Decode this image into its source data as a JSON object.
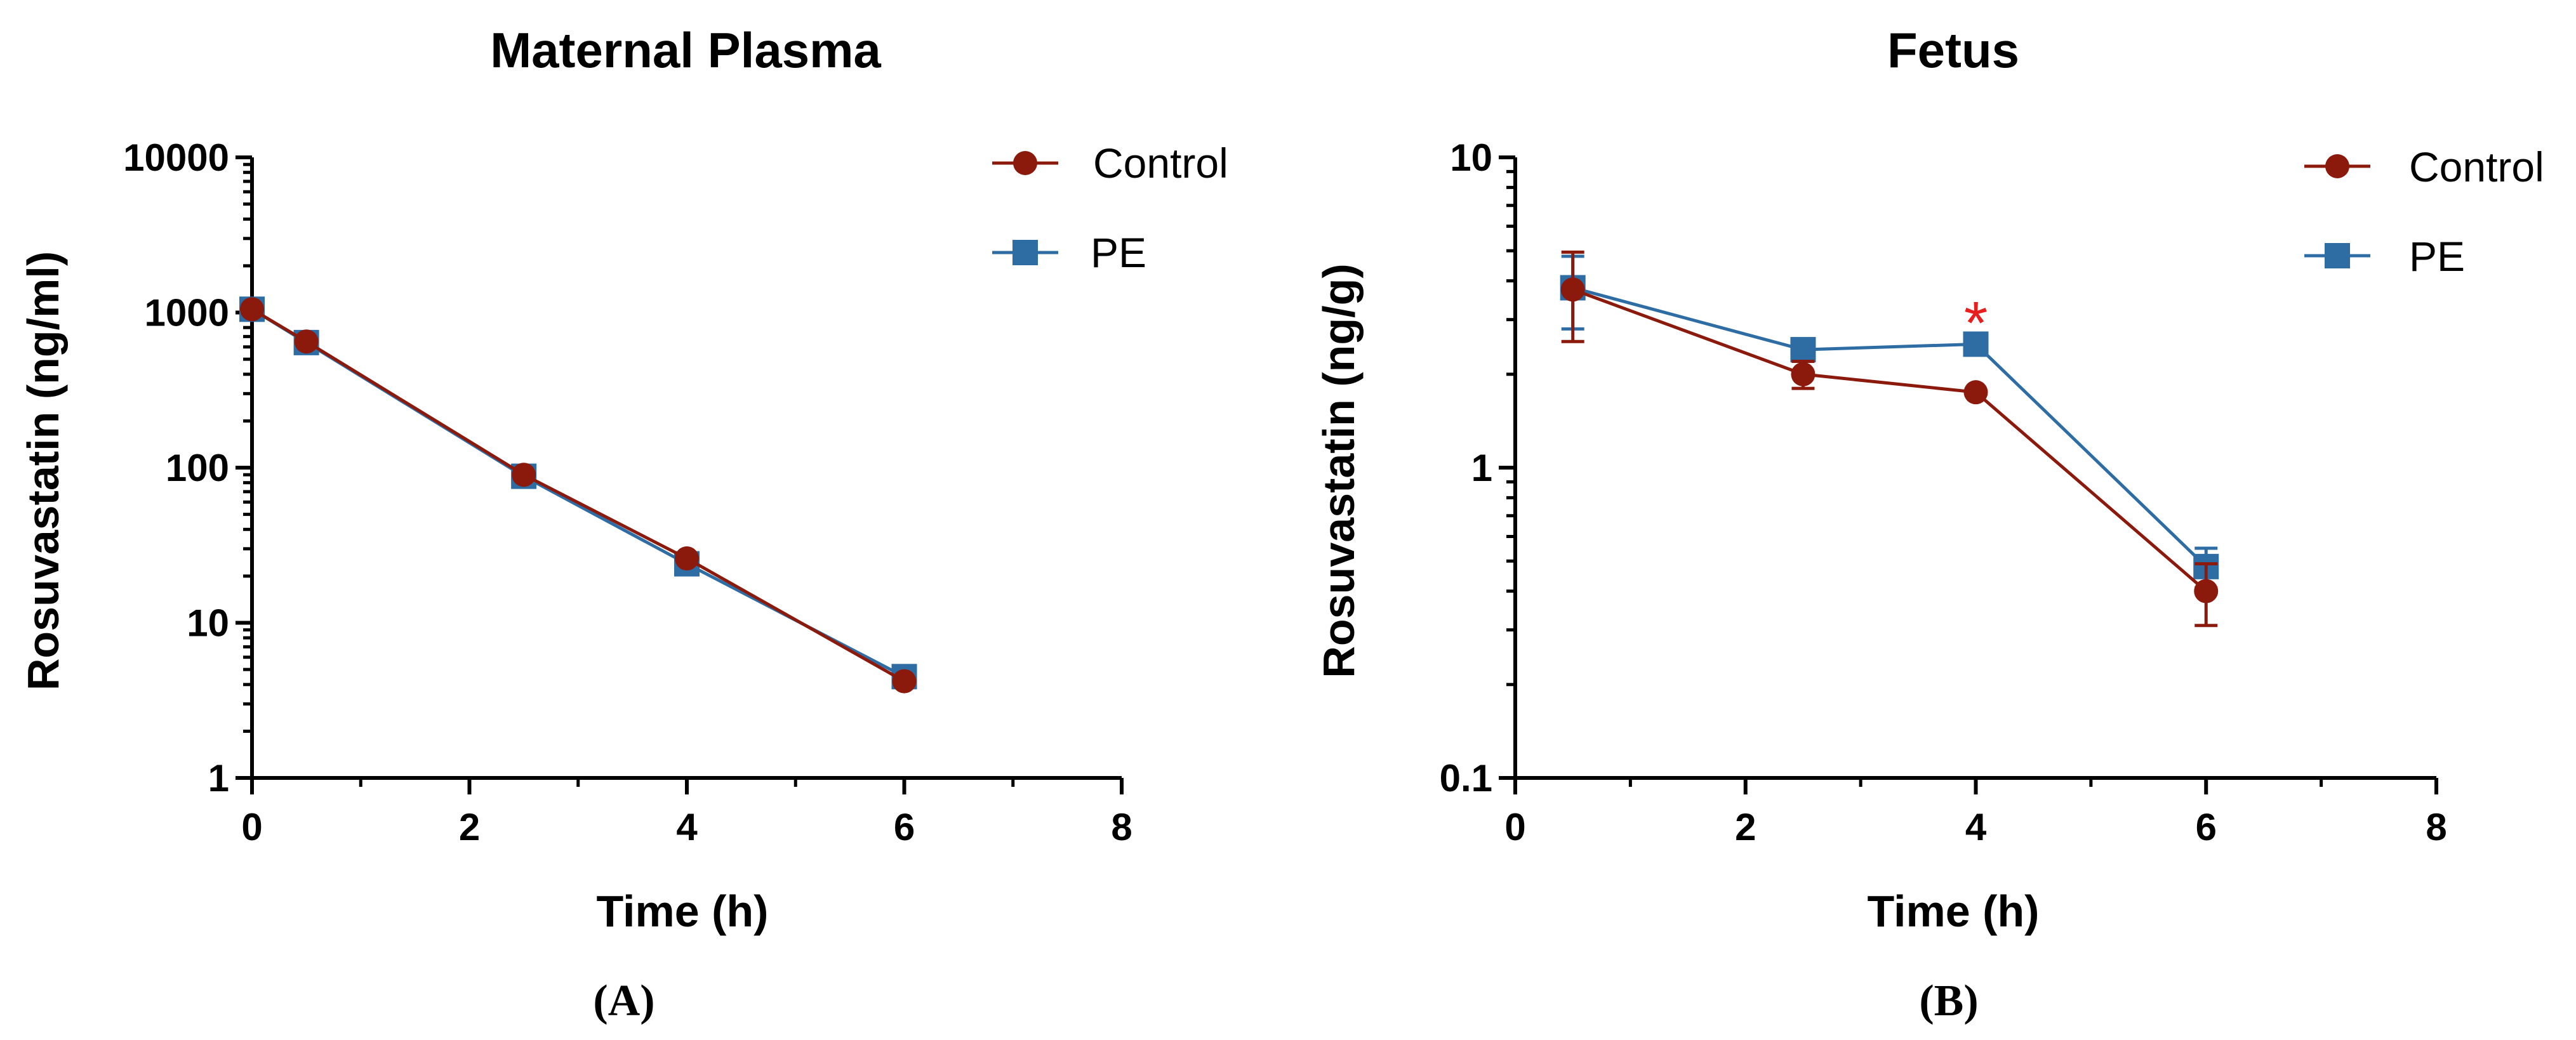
{
  "colors": {
    "control": "#8B1A0C",
    "pe": "#2E6DA4",
    "axis": "#000000",
    "annotation": "#E81E1E"
  },
  "chart_data": [
    {
      "type": "line",
      "panel_label": "(A)",
      "title": "Maternal Plasma",
      "xlabel": "Time (h)",
      "ylabel": "Rosuvastatin (ng/ml)",
      "yscale": "log",
      "xlim": [
        0,
        8
      ],
      "ylim": [
        1,
        10000
      ],
      "xticks": [
        0,
        2,
        4,
        6,
        8
      ],
      "xtick_labels": [
        "0",
        "2",
        "4",
        "6",
        "8"
      ],
      "yticks": [
        1,
        10,
        100,
        1000,
        10000
      ],
      "ytick_labels": [
        "1",
        "10",
        "100",
        "1000",
        "10000"
      ],
      "legend": [
        "Control",
        "PE"
      ],
      "legend_position": "top-right",
      "series": [
        {
          "name": "Control",
          "marker": "circle",
          "x": [
            0,
            0.5,
            2.5,
            4,
            6
          ],
          "y": [
            1050,
            650,
            90,
            26,
            4.2
          ],
          "err": [
            0,
            0,
            0,
            0,
            0
          ]
        },
        {
          "name": "PE",
          "marker": "square",
          "x": [
            0,
            0.5,
            2.5,
            4,
            6
          ],
          "y": [
            1050,
            640,
            88,
            24,
            4.5
          ],
          "err": [
            0,
            0,
            0,
            0,
            0
          ]
        }
      ],
      "annotations": []
    },
    {
      "type": "line",
      "panel_label": "(B)",
      "title": "Fetus",
      "xlabel": "Time (h)",
      "ylabel": "Rosuvastatin (ng/g)",
      "yscale": "log",
      "xlim": [
        0,
        8
      ],
      "ylim": [
        0.1,
        10
      ],
      "xticks": [
        0,
        2,
        4,
        6,
        8
      ],
      "xtick_labels": [
        "0",
        "2",
        "4",
        "6",
        "8"
      ],
      "yticks": [
        0.1,
        1,
        10
      ],
      "ytick_labels": [
        "0.1",
        "1",
        "10"
      ],
      "legend": [
        "Control",
        "PE"
      ],
      "legend_position": "top-right",
      "series": [
        {
          "name": "Control",
          "marker": "circle",
          "x": [
            0.5,
            2.5,
            4,
            6
          ],
          "y": [
            3.75,
            2.0,
            1.75,
            0.4
          ],
          "err": [
            1.2,
            0.2,
            0,
            0.09
          ]
        },
        {
          "name": "PE",
          "marker": "square",
          "x": [
            0.5,
            2.5,
            4,
            6
          ],
          "y": [
            3.8,
            2.4,
            2.5,
            0.48
          ],
          "err": [
            1.0,
            0,
            0,
            0.07
          ]
        }
      ],
      "annotations": [
        {
          "text": "*",
          "x": 4,
          "y": 3.2
        }
      ]
    }
  ]
}
